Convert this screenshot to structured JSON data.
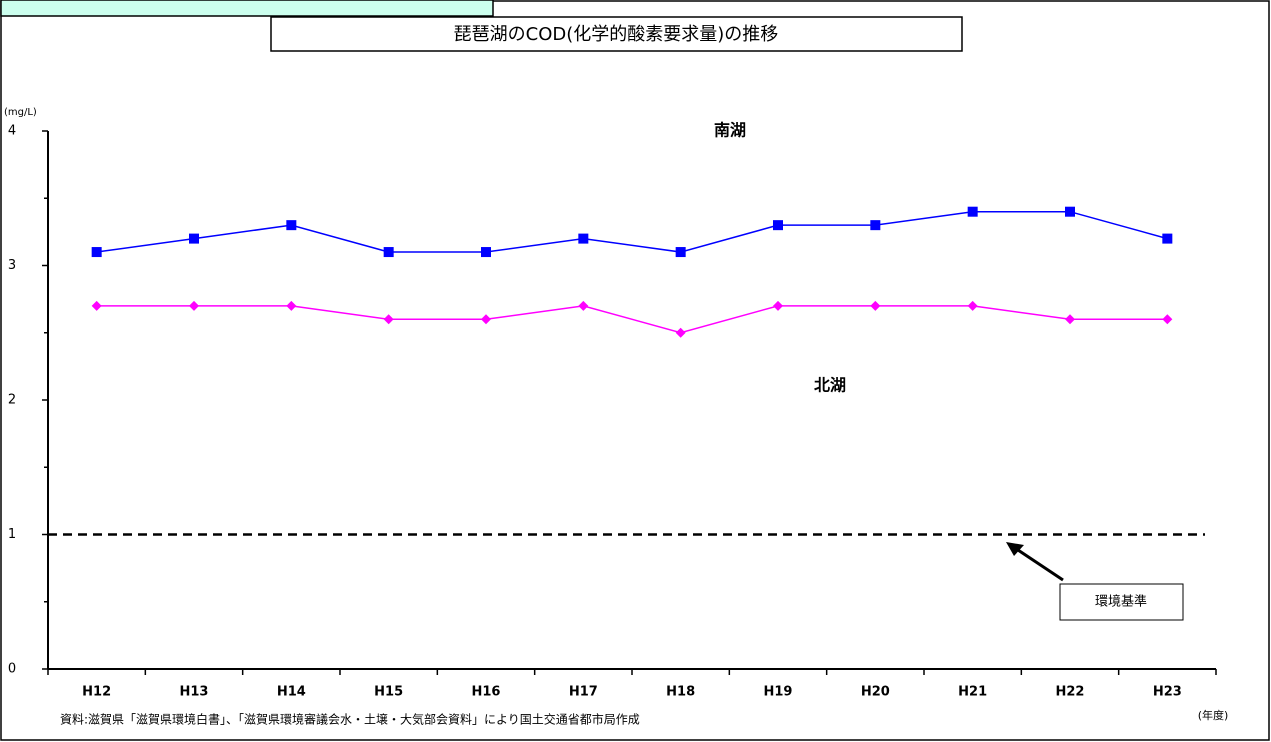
{
  "chart_data": {
    "type": "line",
    "title": "琵琶湖のCOD(化学的酸素要求量)の推移",
    "y_unit": "(mg/L)",
    "x_unit": "(年度)",
    "source": "資料:滋賀県「滋賀県環境白書」、「滋賀県環境審議会水・土壌・大気部会資料」により国土交通省都市局作成",
    "categories": [
      "H12",
      "H13",
      "H14",
      "H15",
      "H16",
      "H17",
      "H18",
      "H19",
      "H20",
      "H21",
      "H22",
      "H23"
    ],
    "series": [
      {
        "name": "南湖",
        "color": "#0000ff",
        "marker": "square",
        "values": [
          3.1,
          3.2,
          3.3,
          3.1,
          3.1,
          3.2,
          3.1,
          3.3,
          3.3,
          3.4,
          3.4,
          3.2
        ]
      },
      {
        "name": "北湖",
        "color": "#ff00ff",
        "marker": "diamond",
        "values": [
          2.7,
          2.7,
          2.7,
          2.6,
          2.6,
          2.7,
          2.5,
          2.7,
          2.7,
          2.7,
          2.6,
          2.6
        ]
      }
    ],
    "reference_line": {
      "value": 1,
      "label": "環境基準"
    },
    "ylim": [
      0,
      4
    ],
    "yticks": [
      0,
      1,
      2,
      3,
      4
    ],
    "minor_yticks": [
      0.5,
      1.5,
      2.5,
      3.5
    ]
  }
}
